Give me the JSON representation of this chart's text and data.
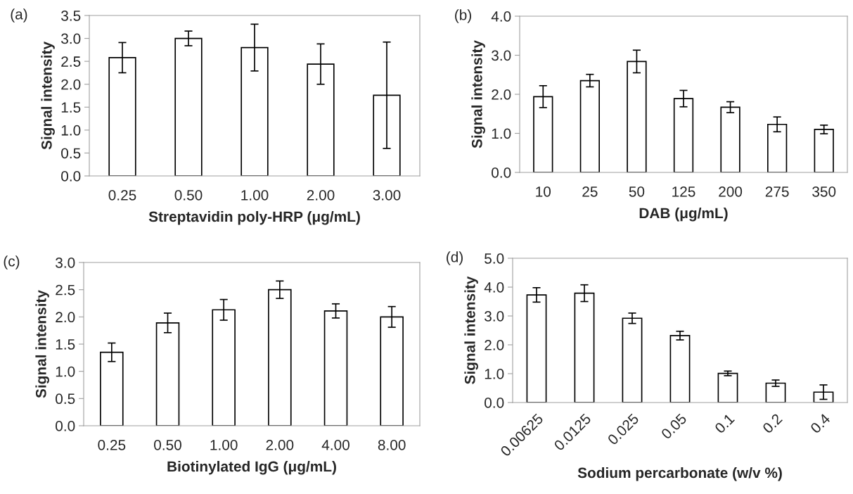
{
  "chart_data": [
    {
      "type": "bar",
      "annotations": [
        "(a)"
      ],
      "xlabel": "Streptavidin poly-HRP (μg/mL)",
      "ylabel": "Signal intensity",
      "categories": [
        "0.25",
        "0.50",
        "1.00",
        "2.00",
        "3.00"
      ],
      "values": [
        2.58,
        3.0,
        2.8,
        2.44,
        1.76
      ],
      "errors": [
        0.33,
        0.16,
        0.51,
        0.44,
        1.16
      ],
      "color": "#ffffff",
      "ylim": [
        0,
        3.5
      ],
      "yticks": [
        {
          "value": 0,
          "label": "0.0"
        },
        {
          "value": 0.5,
          "label": "0.5"
        },
        {
          "value": 1,
          "label": "1.0"
        },
        {
          "value": 1.5,
          "label": "1.5"
        },
        {
          "value": 2,
          "label": "2.0"
        },
        {
          "value": 2.5,
          "label": "2.5"
        },
        {
          "value": 3,
          "label": "3.0"
        },
        {
          "value": 3.5,
          "label": "3.5"
        }
      ],
      "grid": false,
      "legend": false
    },
    {
      "type": "bar",
      "annotations": [
        "(b)"
      ],
      "xlabel": "DAB (μg/mL)",
      "ylabel": "Signal intensity",
      "categories": [
        "10",
        "25",
        "50",
        "125",
        "200",
        "275",
        "350"
      ],
      "values": [
        1.94,
        2.35,
        2.84,
        1.89,
        1.67,
        1.23,
        1.1
      ],
      "errors": [
        0.28,
        0.16,
        0.29,
        0.21,
        0.14,
        0.19,
        0.11
      ],
      "color": "#ffffff",
      "ylim": [
        0,
        4
      ],
      "yticks": [
        {
          "value": 0,
          "label": "0.0"
        },
        {
          "value": 1,
          "label": "1.0"
        },
        {
          "value": 2,
          "label": "2.0"
        },
        {
          "value": 3,
          "label": "3.0"
        },
        {
          "value": 4,
          "label": "4.0"
        }
      ],
      "grid": false,
      "legend": false
    },
    {
      "type": "bar",
      "annotations": [
        "(c)"
      ],
      "xlabel": "Biotinylated IgG (μg/mL)",
      "ylabel": "Signal intensity",
      "categories": [
        "0.25",
        "0.50",
        "1.00",
        "2.00",
        "4.00",
        "8.00"
      ],
      "values": [
        1.35,
        1.89,
        2.13,
        2.5,
        2.11,
        2.0
      ],
      "errors": [
        0.17,
        0.18,
        0.19,
        0.16,
        0.13,
        0.19
      ],
      "color": "#ffffff",
      "ylim": [
        0,
        3
      ],
      "yticks": [
        {
          "value": 0,
          "label": "0.0"
        },
        {
          "value": 0.5,
          "label": "0.5"
        },
        {
          "value": 1,
          "label": "1.0"
        },
        {
          "value": 1.5,
          "label": "1.5"
        },
        {
          "value": 2,
          "label": "2.0"
        },
        {
          "value": 2.5,
          "label": "2.5"
        },
        {
          "value": 3,
          "label": "3.0"
        }
      ],
      "grid": false,
      "legend": false
    },
    {
      "type": "bar",
      "annotations": [
        "(d)"
      ],
      "xlabel": "Sodium percarbonate (w/v %)",
      "ylabel": "Signal intensity",
      "categories": [
        "0.00625",
        "0.0125",
        "0.025",
        "0.05",
        "0.1",
        "0.2",
        "0.4"
      ],
      "values": [
        3.73,
        3.79,
        2.92,
        2.32,
        1.01,
        0.67,
        0.36
      ],
      "errors": [
        0.25,
        0.29,
        0.18,
        0.15,
        0.08,
        0.11,
        0.25
      ],
      "color": "#ffffff",
      "ylim": [
        0,
        5
      ],
      "yticks": [
        {
          "value": 0,
          "label": "0.0"
        },
        {
          "value": 1,
          "label": "1.0"
        },
        {
          "value": 2,
          "label": "2.0"
        },
        {
          "value": 3,
          "label": "3.0"
        },
        {
          "value": 4,
          "label": "4.0"
        },
        {
          "value": 5,
          "label": "5.0"
        }
      ],
      "grid": false,
      "legend": false
    }
  ]
}
